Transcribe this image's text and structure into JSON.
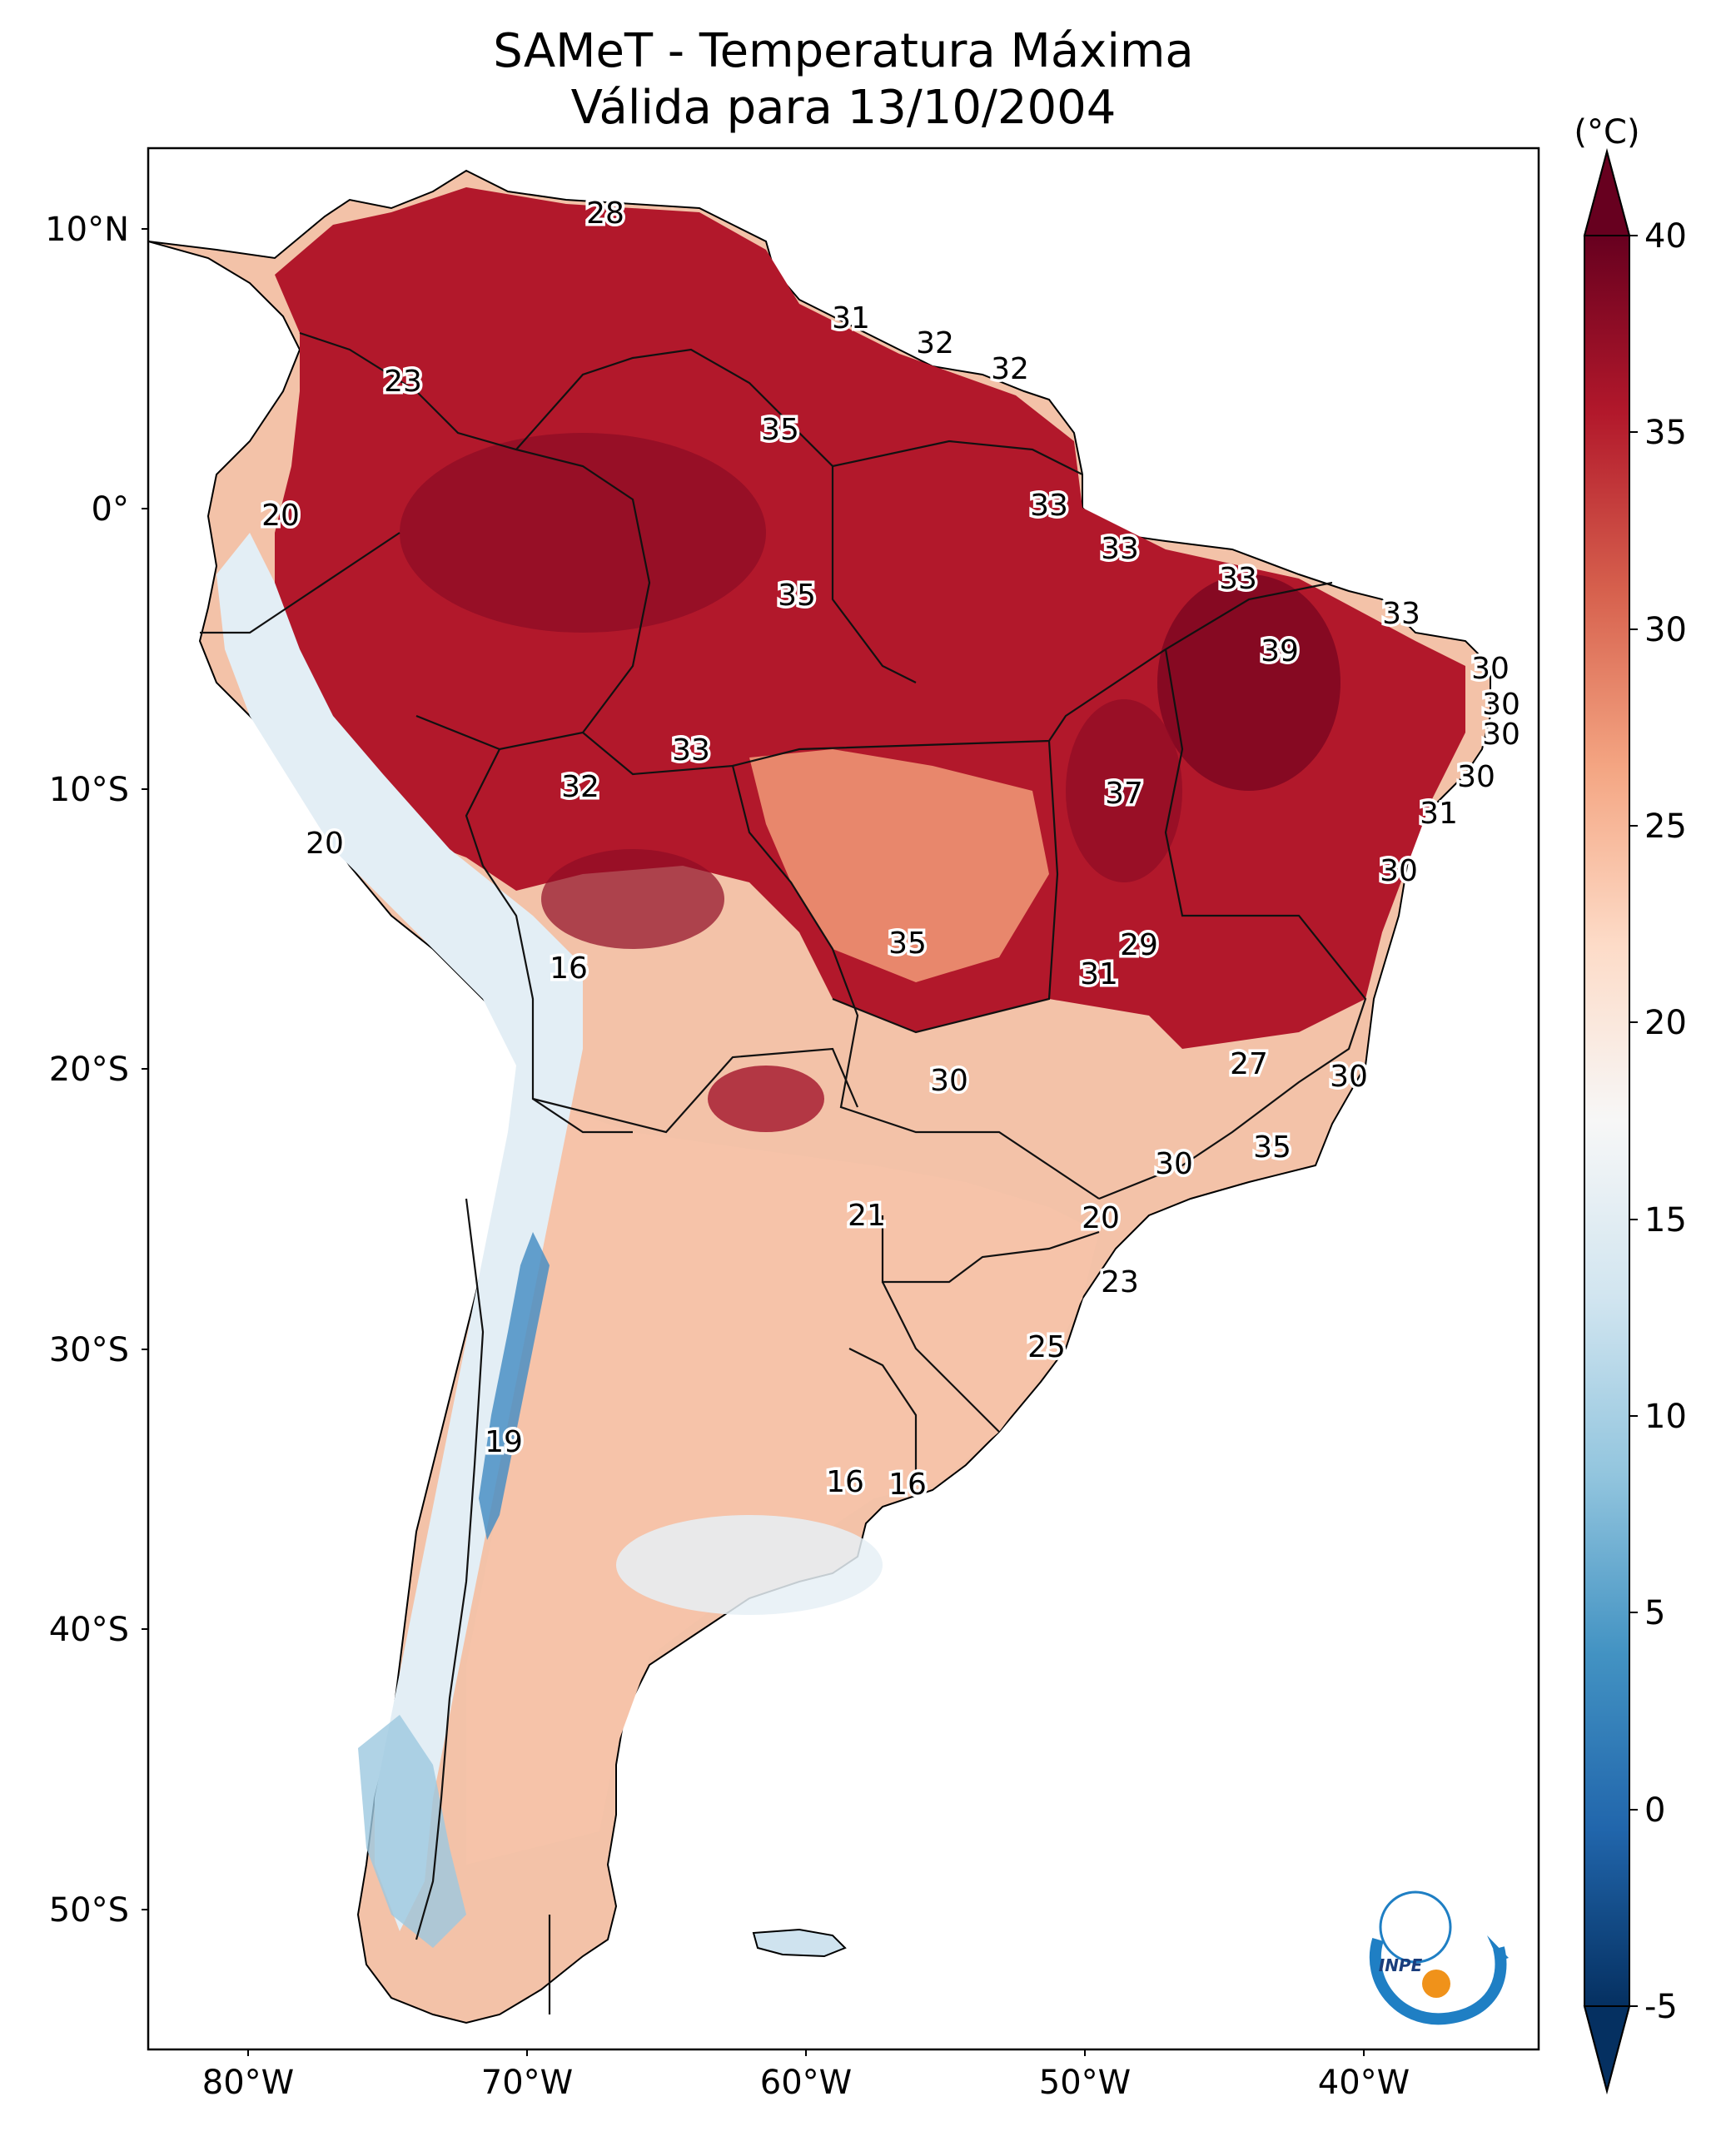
{
  "title_line1": "SAMeT - Temperatura Máxima",
  "title_line2": "Válida para 13/10/2004",
  "colorbar": {
    "unit": "(°C)",
    "ticks": [
      "40",
      "35",
      "30",
      "25",
      "20",
      "15",
      "10",
      "5",
      "0",
      "-5"
    ],
    "min": -5,
    "max": 40,
    "colors": [
      "#053061",
      "#2166ac",
      "#4393c3",
      "#92c5de",
      "#d1e5f0",
      "#f7f7f7",
      "#fddbc7",
      "#f4a582",
      "#d6604d",
      "#b2182b",
      "#67001f"
    ]
  },
  "lat_labels": [
    "10°N",
    "0°",
    "10°S",
    "20°S",
    "30°S",
    "40°S",
    "50°S"
  ],
  "lon_labels": [
    "80°W",
    "70°W",
    "60°W",
    "50°W",
    "40°W"
  ],
  "isotherm_labels": [
    "28",
    "31",
    "32",
    "32",
    "23",
    "35",
    "20",
    "33",
    "33",
    "33",
    "35",
    "33",
    "39",
    "30",
    "30",
    "30",
    "33",
    "32",
    "30",
    "37",
    "31",
    "20",
    "30",
    "16",
    "35",
    "29",
    "31",
    "27",
    "30",
    "30",
    "35",
    "30",
    "21",
    "20",
    "23",
    "25",
    "19",
    "16",
    "16"
  ],
  "logo": {
    "text": "INPE"
  }
}
